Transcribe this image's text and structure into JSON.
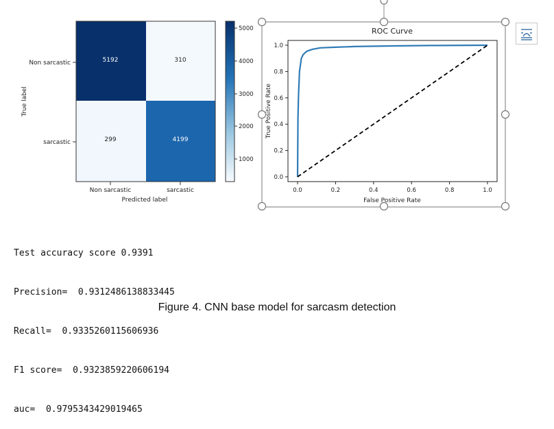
{
  "confusion_matrix": {
    "classes": [
      "Non sarcastic",
      "sarcastic"
    ],
    "cells": [
      [
        "5192",
        "310"
      ],
      [
        "299",
        "4199"
      ]
    ],
    "xlabel": "Predicted label",
    "ylabel": "True label",
    "colorbar_ticks": [
      "5000",
      "4000",
      "3000",
      "2000",
      "1000"
    ],
    "colors": {
      "high": "#08306b",
      "mid": "#1c66ad",
      "low": "#f4f9fe"
    }
  },
  "chart_data": {
    "type": "line",
    "title": "ROC Curve",
    "xlabel": "False Positive Rate",
    "ylabel": "True Positive Rate",
    "xlim": [
      0,
      1
    ],
    "ylim": [
      0,
      1
    ],
    "x_ticks": [
      "0.0",
      "0.2",
      "0.4",
      "0.6",
      "0.8",
      "1.0"
    ],
    "y_ticks": [
      "0.0",
      "0.2",
      "0.4",
      "0.6",
      "0.8",
      "1.0"
    ],
    "series": [
      {
        "x": [
          0,
          0.002,
          0.005,
          0.01,
          0.02,
          0.03,
          0.05,
          0.08,
          0.12,
          0.2,
          0.3,
          0.5,
          0.7,
          1.0
        ],
        "y": [
          0,
          0.45,
          0.62,
          0.8,
          0.9,
          0.93,
          0.955,
          0.97,
          0.98,
          0.985,
          0.99,
          0.995,
          0.998,
          1.0
        ],
        "color": "#2f7bb5",
        "style": "solid"
      },
      {
        "x": [
          0,
          1
        ],
        "y": [
          0,
          1
        ],
        "color": "#000000",
        "style": "dashed"
      }
    ]
  },
  "metrics": [
    "Test accuracy score 0.9391",
    "Precision=  0.9312486138833445",
    "Recall=  0.9335260115606936",
    "F1 score=  0.9323859220606194",
    "auc=  0.9795343429019465"
  ],
  "caption": "Figure 4. CNN base model for sarcasm detection"
}
